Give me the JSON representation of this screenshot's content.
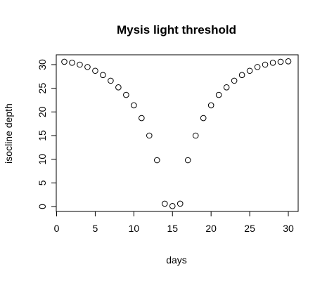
{
  "chart_data": {
    "type": "scatter",
    "title": "Mysis light threshold",
    "xlabel": "days",
    "ylabel": "isocline depth",
    "xlim": [
      0,
      31
    ],
    "ylim": [
      -1,
      32
    ],
    "xticks": [
      0,
      5,
      10,
      15,
      20,
      25,
      30
    ],
    "yticks": [
      0,
      5,
      10,
      15,
      20,
      25,
      30
    ],
    "marker": "open-circle",
    "grid": false,
    "legend": "none",
    "series": [
      {
        "x": [
          1,
          2,
          3,
          4,
          5,
          6,
          7,
          8,
          9,
          10,
          11,
          12,
          13,
          14,
          15,
          16,
          17,
          18,
          19,
          20,
          21,
          22,
          23,
          24,
          25,
          26,
          27,
          28,
          29,
          30
        ],
        "y": [
          30.6,
          30.4,
          30.0,
          29.5,
          28.7,
          27.8,
          26.6,
          25.2,
          23.6,
          21.4,
          18.7,
          15.0,
          9.8,
          0.6,
          0.1,
          0.6,
          9.8,
          15.0,
          18.7,
          21.4,
          23.6,
          25.2,
          26.6,
          27.8,
          28.7,
          29.5,
          30.0,
          30.4,
          30.6,
          30.7
        ]
      }
    ]
  }
}
